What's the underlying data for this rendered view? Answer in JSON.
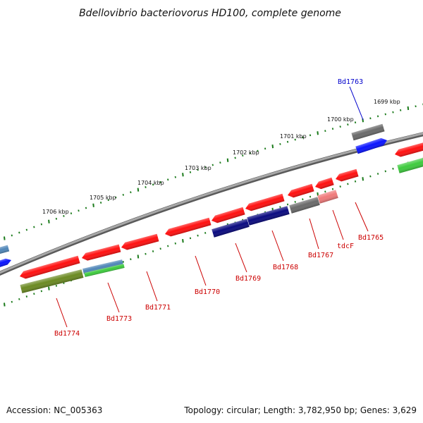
{
  "title": "Bdellovibrio bacteriovorus HD100, complete genome",
  "footer": {
    "accession": "Accession: NC_005363",
    "summary": "Topology: circular; Length: 3,782,950 bp; Genes: 3,629"
  },
  "scale_labels": [
    "1699 kbp",
    "1700 kbp",
    "1701 kbp",
    "1702 kbp",
    "1703 kbp",
    "1704 kbp",
    "1705 kbp",
    "1706 kbp"
  ],
  "gene_labels": [
    {
      "text": "Bd1763",
      "color": "#0000cc"
    },
    {
      "text": "Bd1765",
      "color": "#cc0000"
    },
    {
      "text": "tdcF",
      "color": "#cc0000"
    },
    {
      "text": "Bd1767",
      "color": "#cc0000"
    },
    {
      "text": "Bd1768",
      "color": "#cc0000"
    },
    {
      "text": "Bd1769",
      "color": "#cc0000"
    },
    {
      "text": "Bd1770",
      "color": "#cc0000"
    },
    {
      "text": "Bd1771",
      "color": "#cc0000"
    },
    {
      "text": "Bd1773",
      "color": "#cc0000"
    },
    {
      "text": "Bd1774",
      "color": "#cc0000"
    }
  ],
  "colors": {
    "red": "#ff1010",
    "darkred": "#c00000",
    "navy": "#0a0a80",
    "blue": "#0a14ff",
    "gray": "#6a6a6a",
    "pink": "#f07a7a",
    "green": "#3ecb3e",
    "olive": "#6b8a22",
    "steel": "#4f86b8",
    "backbone": "#888888",
    "tick": "#1a7a1a"
  }
}
